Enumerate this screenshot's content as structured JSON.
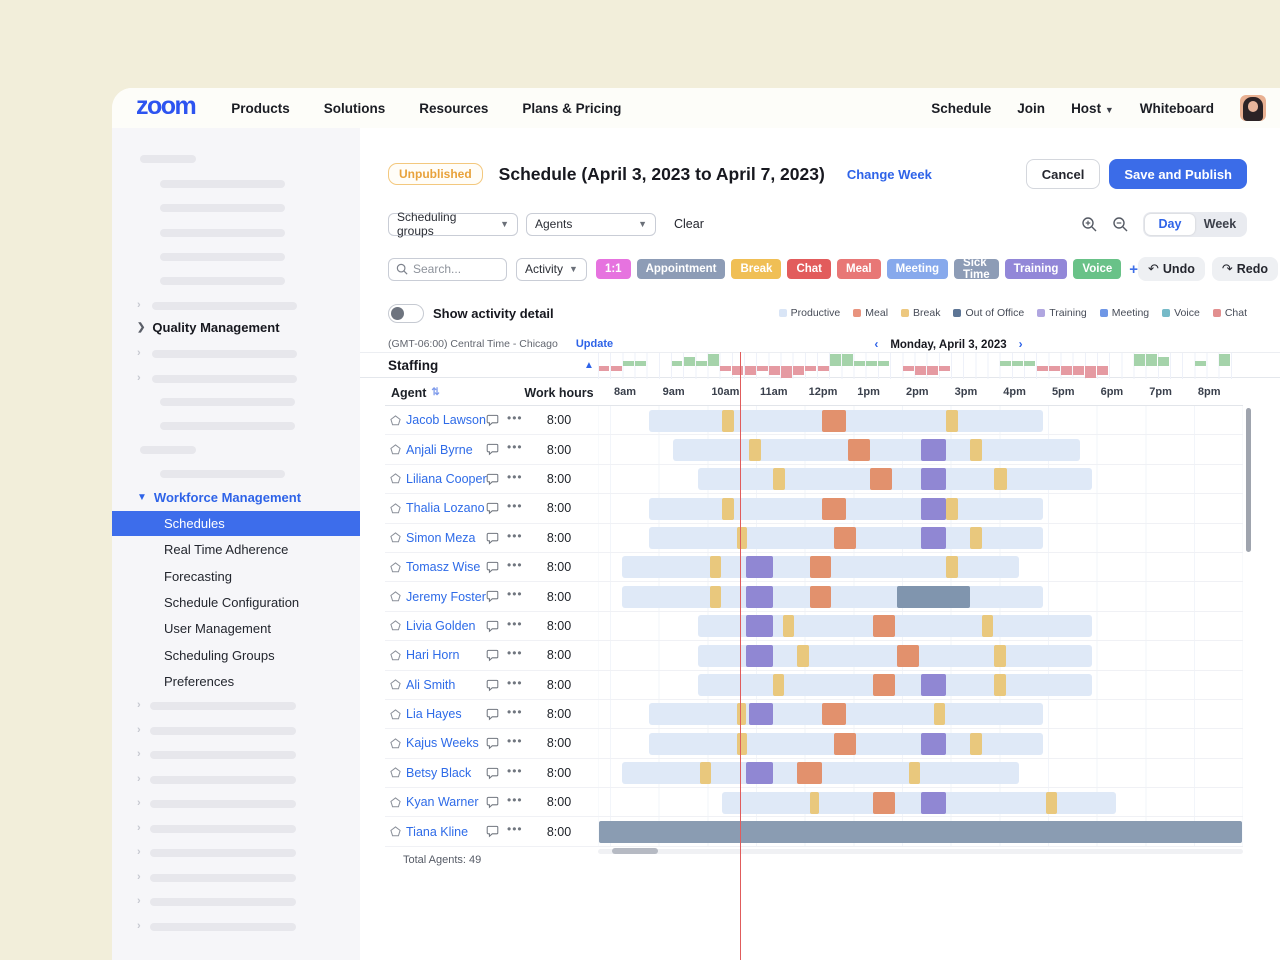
{
  "nav": {
    "logo": "zoom",
    "links": [
      "Products",
      "Solutions",
      "Resources",
      "Plans & Pricing"
    ],
    "right_links": [
      "Schedule",
      "Join",
      "Host",
      "Whiteboard"
    ]
  },
  "sidebar": {
    "section_quality": "Quality Management",
    "section_workforce": "Workforce Management",
    "items": [
      "Schedules",
      "Real Time Adherence",
      "Forecasting",
      "Schedule Configuration",
      "User Management",
      "Scheduling Groups",
      "Preferences"
    ],
    "selected": "Schedules"
  },
  "header": {
    "status_badge": "Unpublished",
    "title": "Schedule (April 3, 2023 to April 7, 2023)",
    "change_week": "Change Week",
    "cancel": "Cancel",
    "save": "Save and Publish"
  },
  "filters": {
    "scheduling_groups": "Scheduling groups",
    "agents": "Agents",
    "clear": "Clear",
    "day": "Day",
    "week": "Week",
    "search_placeholder": "Search...",
    "activity": "Activity",
    "add": "+",
    "undo": "Undo",
    "redo": "Redo",
    "tags": [
      {
        "label": "1:1",
        "color": "#e673df"
      },
      {
        "label": "Appointment",
        "color": "#8d9cb6"
      },
      {
        "label": "Break",
        "color": "#f0bf55"
      },
      {
        "label": "Chat",
        "color": "#e25c5c"
      },
      {
        "label": "Meal",
        "color": "#e87776"
      },
      {
        "label": "Meeting",
        "color": "#87a9ec"
      },
      {
        "label": "Sick Time",
        "color": "#8d9cb6"
      },
      {
        "label": "Training",
        "color": "#9287d8"
      },
      {
        "label": "Voice",
        "color": "#69c288"
      }
    ]
  },
  "toggle": {
    "label": "Show activity detail",
    "on": false
  },
  "legend": [
    {
      "label": "Productive",
      "color": "#d9e5f6"
    },
    {
      "label": "Meal",
      "color": "#e8937e"
    },
    {
      "label": "Break",
      "color": "#edc87f"
    },
    {
      "label": "Out of Office",
      "color": "#5d7595"
    },
    {
      "label": "Training",
      "color": "#b0a6e0"
    },
    {
      "label": "Meeting",
      "color": "#6f97e6"
    },
    {
      "label": "Voice",
      "color": "#76bac8"
    },
    {
      "label": "Chat",
      "color": "#e28f8f"
    }
  ],
  "timezone": {
    "text": "(GMT-06:00) Central Time - Chicago",
    "update": "Update"
  },
  "date_nav": {
    "label": "Monday, April 3, 2023",
    "prev": "‹",
    "next": "›"
  },
  "staffing": {
    "label": "Staffing"
  },
  "chart_data": {
    "type": "bar",
    "title": "Staffing",
    "x_range": [
      "8am",
      "9pm"
    ],
    "slot_minutes": 15,
    "note": "over/under staffing level per 15-min slot; positive=overstaffed(green), negative=understaffed(red)",
    "values": [
      -1,
      -1,
      1,
      1,
      0,
      0,
      1,
      2,
      1,
      3,
      -1,
      -2,
      -2,
      -1,
      -2,
      -3,
      -2,
      -1,
      -1,
      3,
      3,
      1,
      1,
      1,
      0,
      -1,
      -2,
      -2,
      -1,
      0,
      0,
      0,
      0,
      1,
      1,
      1,
      -1,
      -1,
      -2,
      -2,
      -3,
      -2,
      0,
      0,
      3,
      3,
      2,
      0,
      0,
      1,
      0,
      3
    ]
  },
  "table": {
    "agent_col": "Agent",
    "work_hours_col": "Work hours",
    "hours": [
      "8am",
      "9am",
      "10am",
      "11am",
      "12pm",
      "1pm",
      "2pm",
      "3pm",
      "4pm",
      "5pm",
      "6pm",
      "7pm",
      "8pm"
    ],
    "total": "Total Agents: 49"
  },
  "agents": [
    {
      "name": "Jacob Lawson",
      "work_hours": "8:00",
      "shift": [
        0.8,
        8.9
      ],
      "blocks": [
        {
          "t": "break",
          "s": 2.3,
          "e": 2.55
        },
        {
          "t": "meal",
          "s": 4.35,
          "e": 4.85
        },
        {
          "t": "break",
          "s": 6.9,
          "e": 7.15
        }
      ]
    },
    {
      "name": "Anjali Byrne",
      "work_hours": "8:00",
      "shift": [
        1.3,
        9.65
      ],
      "blocks": [
        {
          "t": "break",
          "s": 2.85,
          "e": 3.1
        },
        {
          "t": "meal",
          "s": 4.9,
          "e": 5.35
        },
        {
          "t": "training",
          "s": 6.4,
          "e": 6.9
        },
        {
          "t": "break",
          "s": 7.4,
          "e": 7.65
        }
      ]
    },
    {
      "name": "Liliana Cooper",
      "work_hours": "8:00",
      "shift": [
        1.8,
        9.9
      ],
      "blocks": [
        {
          "t": "break",
          "s": 3.35,
          "e": 3.6
        },
        {
          "t": "meal",
          "s": 5.35,
          "e": 5.8
        },
        {
          "t": "training",
          "s": 6.4,
          "e": 6.9
        },
        {
          "t": "break",
          "s": 7.9,
          "e": 8.15
        }
      ]
    },
    {
      "name": "Thalia Lozano",
      "work_hours": "8:00",
      "shift": [
        0.8,
        8.9
      ],
      "blocks": [
        {
          "t": "break",
          "s": 2.3,
          "e": 2.55
        },
        {
          "t": "meal",
          "s": 4.35,
          "e": 4.85
        },
        {
          "t": "training",
          "s": 6.4,
          "e": 6.9
        },
        {
          "t": "break",
          "s": 6.9,
          "e": 7.15
        }
      ]
    },
    {
      "name": "Simon Meza",
      "work_hours": "8:00",
      "shift": [
        0.8,
        8.9
      ],
      "blocks": [
        {
          "t": "break",
          "s": 2.6,
          "e": 2.82
        },
        {
          "t": "meal",
          "s": 4.6,
          "e": 5.05
        },
        {
          "t": "training",
          "s": 6.4,
          "e": 6.9
        },
        {
          "t": "break",
          "s": 7.4,
          "e": 7.65
        }
      ]
    },
    {
      "name": "Tomasz Wise",
      "work_hours": "8:00",
      "shift": [
        0.25,
        8.4
      ],
      "blocks": [
        {
          "t": "break",
          "s": 2.05,
          "e": 2.28
        },
        {
          "t": "training",
          "s": 2.8,
          "e": 3.35
        },
        {
          "t": "meal",
          "s": 4.1,
          "e": 4.55
        },
        {
          "t": "break",
          "s": 6.9,
          "e": 7.15
        }
      ]
    },
    {
      "name": "Jeremy Foster",
      "work_hours": "8:00",
      "shift": [
        0.25,
        8.9
      ],
      "blocks": [
        {
          "t": "break",
          "s": 2.05,
          "e": 2.28
        },
        {
          "t": "training",
          "s": 2.8,
          "e": 3.35
        },
        {
          "t": "meal",
          "s": 4.1,
          "e": 4.55
        },
        {
          "t": "ooo",
          "s": 5.9,
          "e": 7.4
        }
      ]
    },
    {
      "name": "Livia Golden",
      "work_hours": "8:00",
      "shift": [
        1.8,
        9.9
      ],
      "blocks": [
        {
          "t": "training",
          "s": 2.8,
          "e": 3.35
        },
        {
          "t": "break",
          "s": 3.55,
          "e": 3.78
        },
        {
          "t": "meal",
          "s": 5.4,
          "e": 5.85
        },
        {
          "t": "break",
          "s": 7.65,
          "e": 7.88
        }
      ]
    },
    {
      "name": "Hari Horn",
      "work_hours": "8:00",
      "shift": [
        1.8,
        9.9
      ],
      "blocks": [
        {
          "t": "training",
          "s": 2.8,
          "e": 3.35
        },
        {
          "t": "break",
          "s": 3.85,
          "e": 4.08
        },
        {
          "t": "meal",
          "s": 5.9,
          "e": 6.35
        },
        {
          "t": "break",
          "s": 7.9,
          "e": 8.13
        }
      ]
    },
    {
      "name": "Ali Smith",
      "work_hours": "8:00",
      "shift": [
        1.8,
        9.9
      ],
      "blocks": [
        {
          "t": "break",
          "s": 3.35,
          "e": 3.58
        },
        {
          "t": "meal",
          "s": 5.4,
          "e": 5.85
        },
        {
          "t": "training",
          "s": 6.4,
          "e": 6.9
        },
        {
          "t": "break",
          "s": 7.9,
          "e": 8.13
        }
      ]
    },
    {
      "name": "Lia Hayes",
      "work_hours": "8:00",
      "shift": [
        0.8,
        8.9
      ],
      "blocks": [
        {
          "t": "break",
          "s": 2.6,
          "e": 2.8
        },
        {
          "t": "training",
          "s": 2.85,
          "e": 3.35
        },
        {
          "t": "meal",
          "s": 4.35,
          "e": 4.85
        },
        {
          "t": "break",
          "s": 6.65,
          "e": 6.88
        }
      ]
    },
    {
      "name": "Kajus Weeks",
      "work_hours": "8:00",
      "shift": [
        0.8,
        8.9
      ],
      "blocks": [
        {
          "t": "break",
          "s": 2.6,
          "e": 2.82
        },
        {
          "t": "meal",
          "s": 4.6,
          "e": 5.05
        },
        {
          "t": "training",
          "s": 6.4,
          "e": 6.9
        },
        {
          "t": "break",
          "s": 7.4,
          "e": 7.65
        }
      ]
    },
    {
      "name": "Betsy Black",
      "work_hours": "8:00",
      "shift": [
        0.25,
        8.4
      ],
      "blocks": [
        {
          "t": "break",
          "s": 1.85,
          "e": 2.08
        },
        {
          "t": "training",
          "s": 2.8,
          "e": 3.35
        },
        {
          "t": "meal",
          "s": 3.85,
          "e": 4.35
        },
        {
          "t": "break",
          "s": 6.15,
          "e": 6.38
        }
      ]
    },
    {
      "name": "Kyan Warner",
      "work_hours": "8:00",
      "shift": [
        2.3,
        10.4
      ],
      "blocks": [
        {
          "t": "break",
          "s": 4.1,
          "e": 4.3
        },
        {
          "t": "meal",
          "s": 5.4,
          "e": 5.85
        },
        {
          "t": "training",
          "s": 6.4,
          "e": 6.9
        },
        {
          "t": "break",
          "s": 8.95,
          "e": 9.18
        }
      ]
    },
    {
      "name": "Tiana Kline",
      "work_hours": "8:00",
      "ooo_full": true,
      "blocks": []
    }
  ],
  "colors": {
    "accent": "#2e63e8",
    "shift": "#dfe9f7",
    "break": "#e9c87d",
    "meal": "#e2916d",
    "training": "#9087d3",
    "ooo": "#8095ae",
    "ooo_full": "#8a9cb2",
    "staff_up": "#a5d3aa",
    "staff_down": "#e59aa2",
    "redline": "#e05c5c"
  }
}
